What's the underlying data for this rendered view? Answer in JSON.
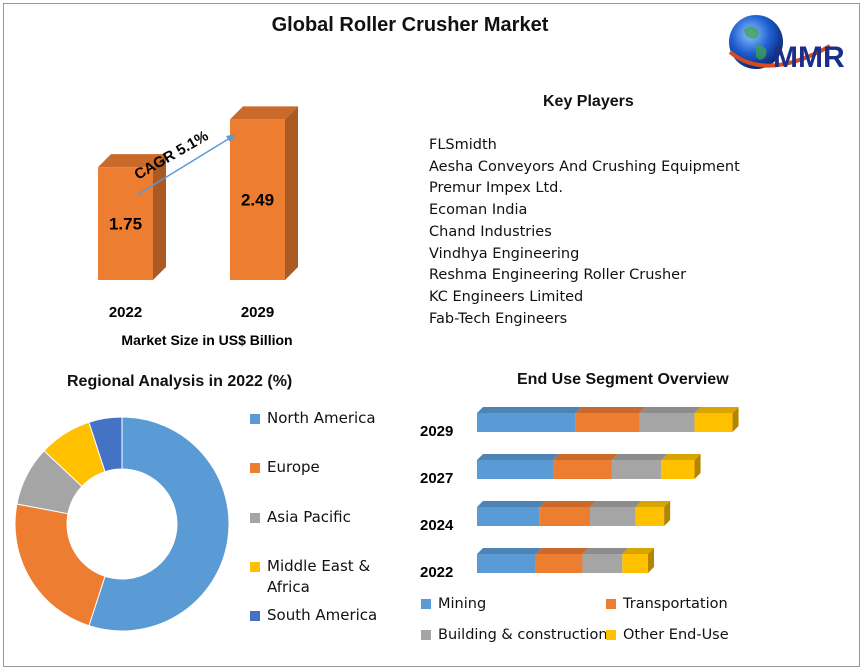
{
  "title": "Global Roller Crusher Market",
  "logo_text": "MMR",
  "colors": {
    "orange": "#ED7D31",
    "blue": "#5B9BD5",
    "gray": "#A5A5A5",
    "yellow": "#FFC000",
    "dark_blue": "#4472C4",
    "arrow": "#5B9BD5"
  },
  "market_chart": {
    "cagr_label": "CAGR 5.1%",
    "axis_label": "Market Size in US$ Billion"
  },
  "key_players": {
    "heading": "Key Players",
    "items": [
      "FLSmidth",
      "Aesha Conveyors And Crushing Equipment",
      "Premur Impex Ltd.",
      "Ecoman India",
      "Chand Industries",
      "Vindhya Engineering",
      "Reshma Engineering Roller Crusher",
      "KC Engineers Limited",
      "Fab-Tech Engineers"
    ]
  },
  "regional": {
    "heading": "Regional Analysis in 2022 (%)"
  },
  "end_use": {
    "heading": "End Use Segment Overview"
  },
  "chart_data": [
    {
      "type": "bar",
      "categories": [
        "2022",
        "2029"
      ],
      "values": [
        1.75,
        2.49
      ],
      "data_labels": [
        "1.75",
        "2.49"
      ],
      "xlabel": "Market Size in US$ Billion",
      "annotation": "CAGR 5.1%",
      "color": "#ED7D31"
    },
    {
      "type": "pie",
      "title": "Regional Analysis in 2022 (%)",
      "donut": true,
      "labels": [
        "North America",
        "Europe",
        "Asia Pacific",
        "Middle East & Africa",
        "South America"
      ],
      "values": [
        55,
        23,
        9,
        8,
        5
      ],
      "colors": [
        "#5B9BD5",
        "#ED7D31",
        "#A5A5A5",
        "#FFC000",
        "#4472C4"
      ],
      "legend_placement": "right"
    },
    {
      "type": "bar",
      "orientation": "horizontal",
      "stacked": true,
      "title": "End Use Segment Overview",
      "categories": [
        "2029",
        "2027",
        "2024",
        "2022"
      ],
      "series": [
        {
          "name": "Mining",
          "values": [
            10.4,
            8.0,
            6.6,
            6.2
          ],
          "color": "#5B9BD5"
        },
        {
          "name": "Transportation",
          "values": [
            6.7,
            6.2,
            5.3,
            4.9
          ],
          "color": "#ED7D31"
        },
        {
          "name": "Building & construction",
          "values": [
            5.8,
            5.2,
            4.8,
            4.2
          ],
          "color": "#A5A5A5"
        },
        {
          "name": "Other End-Use",
          "values": [
            4.0,
            3.5,
            3.0,
            2.7
          ],
          "color": "#FFC000"
        }
      ],
      "legend_placement": "bottom"
    }
  ]
}
